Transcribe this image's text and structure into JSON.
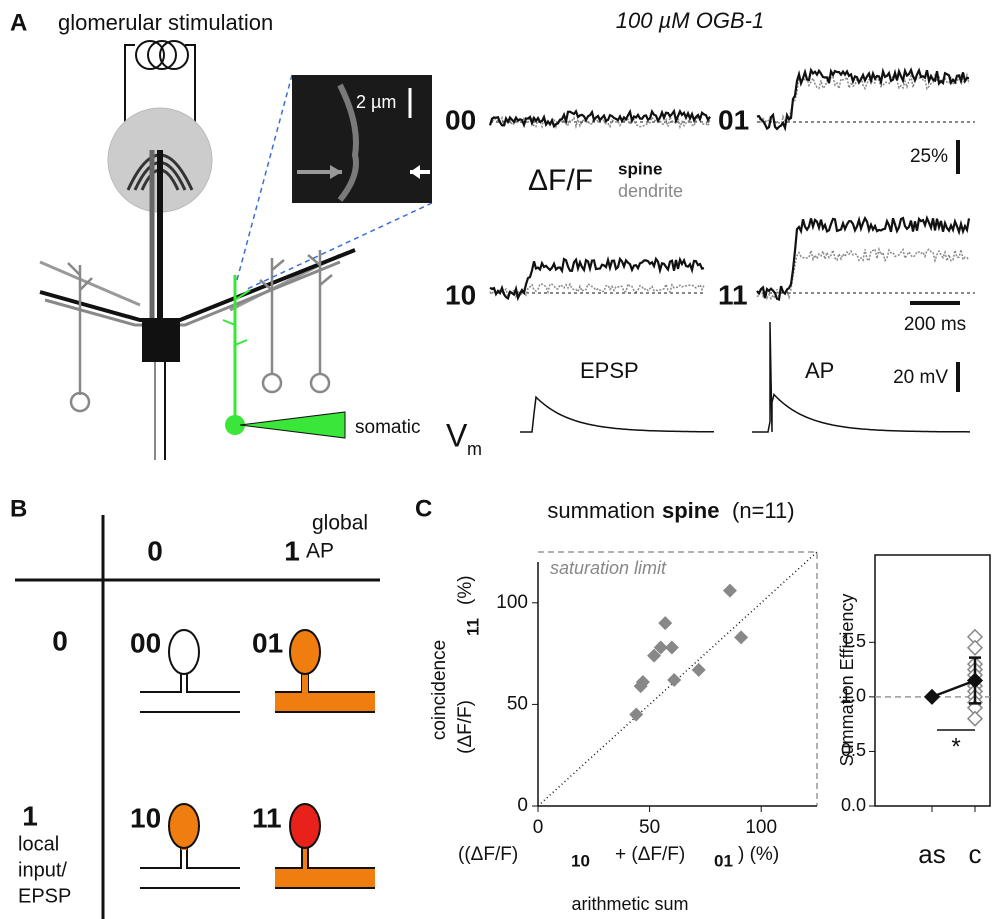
{
  "panel_a": {
    "label": "A",
    "title": "glomerular stimulation",
    "dye": "100 µM OGB-1",
    "scale_image": "2 µm",
    "traces": [
      "00",
      "01",
      "10",
      "11"
    ],
    "dff": "ΔF/F",
    "spine": "spine",
    "dendrite": "dendrite",
    "scale_dff": "25%",
    "scale_time": "200 ms",
    "epsp": "EPSP",
    "ap": "AP",
    "scale_vm": "20 mV",
    "somatic": "somatic",
    "vm": "V",
    "vm_sub": "m"
  },
  "panel_b": {
    "label": "B",
    "col_heads": [
      "0",
      "1"
    ],
    "col_title": [
      "global",
      "AP"
    ],
    "row_heads": [
      "0",
      "1"
    ],
    "row_title": [
      "local",
      "input/",
      "EPSP"
    ],
    "cells": [
      "00",
      "01",
      "10",
      "11"
    ]
  },
  "panel_c": {
    "label": "C"
  },
  "chart_data": [
    {
      "type": "scatter",
      "title": [
        "summation",
        "spine",
        "(n=11)"
      ],
      "ylabel": [
        "coincidence",
        "(ΔF/F)",
        "11",
        "(%)"
      ],
      "xlabel": [
        "((ΔF/F)",
        "10",
        "+ (ΔF/F)",
        "01",
        ") (%)"
      ],
      "xlabel2": "arithmetic sum",
      "annotation": "saturation limit",
      "color": "#888888",
      "x": [
        44,
        46,
        47,
        52,
        55,
        57,
        60,
        61,
        72,
        86,
        91
      ],
      "values": [
        45,
        59,
        61,
        74,
        78,
        90,
        78,
        62,
        67,
        106,
        83
      ],
      "xlim": [
        0,
        125
      ],
      "ylim": [
        0,
        125
      ],
      "xticks": [
        0,
        50,
        100
      ],
      "yticks": [
        0,
        50,
        100
      ]
    },
    {
      "type": "dot",
      "ylabel": "Summation Efficiency",
      "categories": [
        "as",
        "c"
      ],
      "values": [
        1.0,
        1.15
      ],
      "errors": [
        0,
        0.21
      ],
      "individual": [
        1.55,
        1.45,
        1.3,
        1.25,
        1.2,
        1.1,
        1.05,
        1.0,
        0.95,
        0.9,
        0.8
      ],
      "reference": 1.0,
      "significance": "*",
      "ylim": [
        0,
        2.3
      ],
      "yticks": [
        {
          "value": 0,
          "label": "0.0"
        },
        {
          "value": 0.5,
          "label": "0.5"
        },
        {
          "value": 1,
          "label": "1.0"
        },
        {
          "value": 1.5,
          "label": "1.5"
        }
      ]
    }
  ]
}
